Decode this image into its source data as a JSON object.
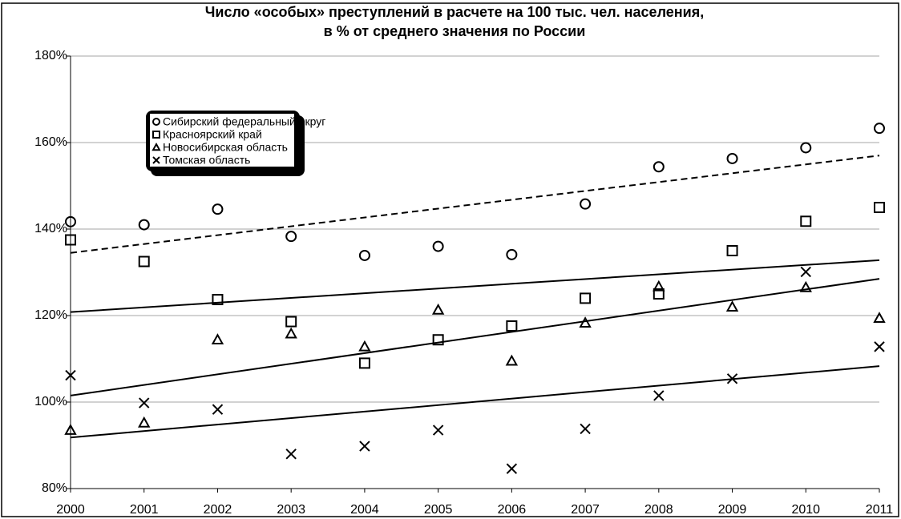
{
  "chart_data": {
    "type": "scatter",
    "title": [
      "Число «особых» преступлений в расчете на 100 тыс. чел. населения,",
      "в % от среднего значения по России"
    ],
    "x": [
      2000,
      2001,
      2002,
      2003,
      2004,
      2005,
      2006,
      2007,
      2008,
      2009,
      2010,
      2011
    ],
    "xlim": [
      2000,
      2011
    ],
    "xticks": [
      2000,
      2001,
      2002,
      2003,
      2004,
      2005,
      2006,
      2007,
      2008,
      2009,
      2010,
      2011
    ],
    "ylim": [
      80,
      180
    ],
    "yticks": [
      {
        "value": 80,
        "label": "80%"
      },
      {
        "value": 100,
        "label": "100%"
      },
      {
        "value": 120,
        "label": "120%"
      },
      {
        "value": 140,
        "label": "140%"
      },
      {
        "value": 160,
        "label": "160%"
      },
      {
        "value": 180,
        "label": "180%"
      }
    ],
    "grid": true,
    "legend": "upper left",
    "series": [
      {
        "name": "Сибирский федеральный округ",
        "marker": "circle",
        "color": "#000000",
        "trend": [
          134.5,
          157.0
        ],
        "trend_style": "dashed",
        "values": [
          141.7,
          141.0,
          144.6,
          138.3,
          133.9,
          136.0,
          134.1,
          145.8,
          154.4,
          156.3,
          158.8,
          163.3
        ]
      },
      {
        "name": "Красноярский край",
        "marker": "square",
        "color": "#000000",
        "trend": [
          120.8,
          132.8
        ],
        "trend_style": "solid",
        "values": [
          137.5,
          132.5,
          123.7,
          118.6,
          109.0,
          114.4,
          117.6,
          124.0,
          125.0,
          135.0,
          141.8,
          145.0
        ]
      },
      {
        "name": "Новосибирская область",
        "marker": "triangle",
        "color": "#000000",
        "trend": [
          101.5,
          128.5
        ],
        "trend_style": "solid",
        "values": [
          93.5,
          95.2,
          114.4,
          115.8,
          112.8,
          121.3,
          109.5,
          118.3,
          126.7,
          122.0,
          126.5,
          119.4
        ]
      },
      {
        "name": "Томская область",
        "marker": "cross",
        "color": "#000000",
        "trend": [
          91.8,
          108.3
        ],
        "trend_style": "solid",
        "values": [
          106.2,
          99.8,
          98.3,
          88.0,
          89.8,
          93.5,
          84.6,
          93.8,
          101.5,
          105.4,
          130.1,
          112.8
        ]
      }
    ]
  }
}
